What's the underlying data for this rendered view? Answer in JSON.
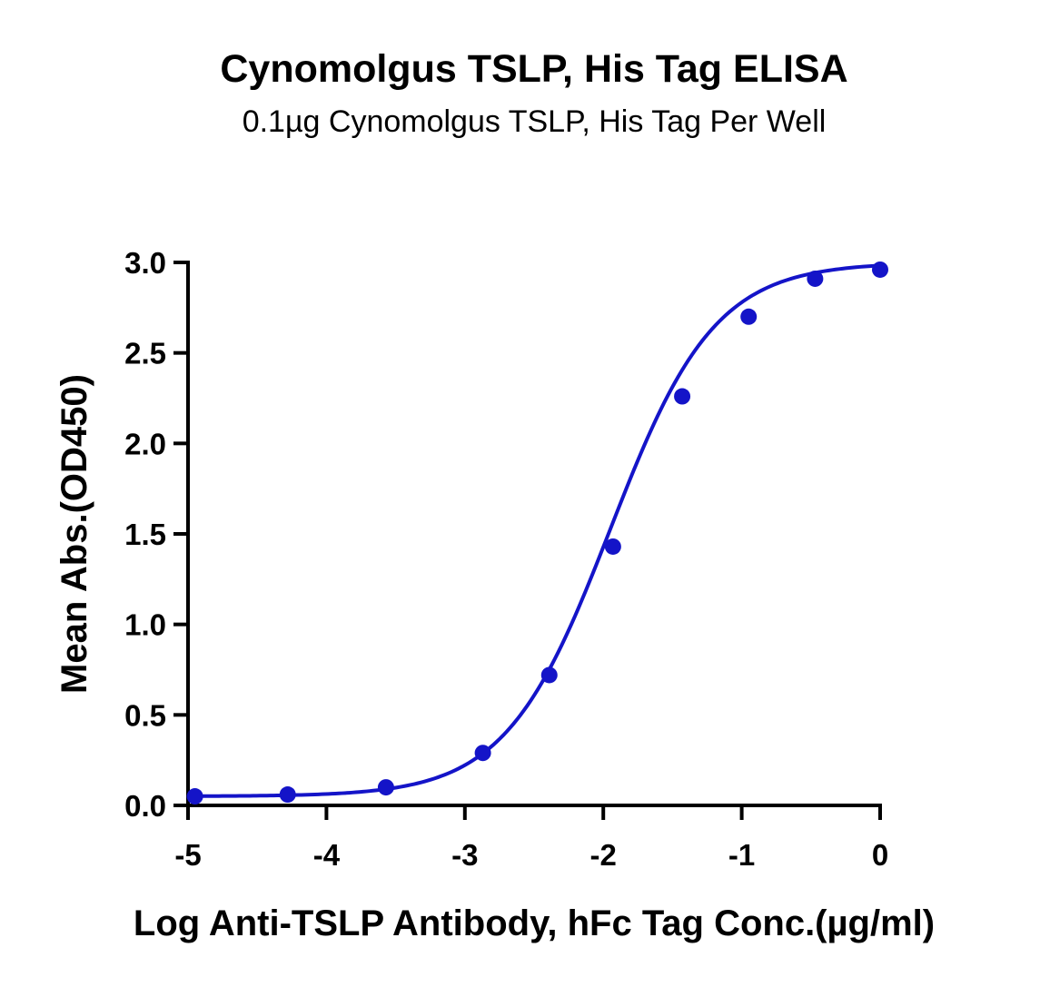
{
  "chart_data": {
    "type": "scatter",
    "title": "Cynomolgus TSLP, His Tag ELISA",
    "subtitle": "0.1µg Cynomolgus TSLP, His Tag Per Well",
    "xlabel": "Log Anti-TSLP Antibody, hFc Tag Conc.(µg/ml)",
    "ylabel": "Mean Abs.(OD450)",
    "xlim": [
      -5,
      0
    ],
    "ylim": [
      0,
      3.0
    ],
    "xticks": [
      -5,
      -4,
      -3,
      -2,
      -1,
      0
    ],
    "xtick_labels": [
      "-5",
      "-4",
      "-3",
      "-2",
      "-1",
      "0"
    ],
    "yticks": [
      0,
      0.5,
      1.0,
      1.5,
      2.0,
      2.5,
      3.0
    ],
    "ytick_labels": [
      "0.0",
      "0.5",
      "1.0",
      "1.5",
      "2.0",
      "2.5",
      "3.0"
    ],
    "grid": false,
    "series": [
      {
        "color": "#1414C8",
        "x": [
          -4.95,
          -4.28,
          -3.57,
          -2.87,
          -2.39,
          -1.93,
          -1.43,
          -0.95,
          -0.47,
          0.0
        ],
        "y": [
          0.05,
          0.06,
          0.1,
          0.29,
          0.72,
          1.43,
          2.26,
          2.7,
          2.91,
          2.96
        ]
      }
    ],
    "fit": {
      "model": "4PL",
      "bottom": 0.05,
      "top": 3.0,
      "logEC50": -1.95,
      "hill": 1.15
    }
  }
}
